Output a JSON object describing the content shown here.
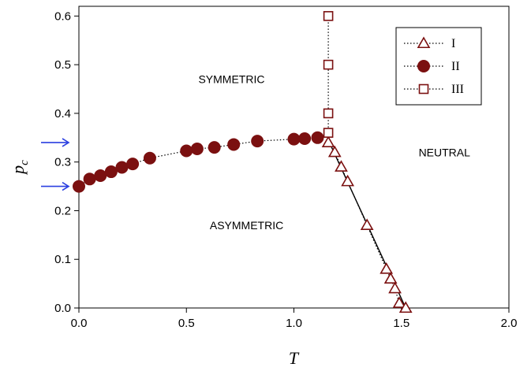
{
  "chart_data": {
    "type": "scatter",
    "title": "",
    "xlabel": "T",
    "ylabel_main": "p",
    "ylabel_sub": "c",
    "xlim": [
      0,
      2.0
    ],
    "ylim": [
      0,
      0.62
    ],
    "x_ticks": [
      "0.0",
      "0.5",
      "1.0",
      "1.5",
      "2.0"
    ],
    "y_ticks": [
      "0.0",
      "0.1",
      "0.2",
      "0.3",
      "0.4",
      "0.5",
      "0.6"
    ],
    "x_tick_values": [
      0,
      0.5,
      1.0,
      1.5,
      2.0
    ],
    "y_tick_values": [
      0,
      0.1,
      0.2,
      0.3,
      0.4,
      0.5,
      0.6
    ],
    "grid": false,
    "legend_position": "top-right",
    "colors": {
      "marker": "#7b1010",
      "line": "#000000",
      "arrow": "#2a3fe0"
    },
    "series": [
      {
        "name": "I",
        "marker": "open-triangle",
        "points": [
          {
            "x": 1.16,
            "y": 0.34
          },
          {
            "x": 1.19,
            "y": 0.32
          },
          {
            "x": 1.22,
            "y": 0.29
          },
          {
            "x": 1.25,
            "y": 0.26
          },
          {
            "x": 1.34,
            "y": 0.17
          },
          {
            "x": 1.43,
            "y": 0.08
          },
          {
            "x": 1.45,
            "y": 0.06
          },
          {
            "x": 1.47,
            "y": 0.04
          },
          {
            "x": 1.49,
            "y": 0.01
          },
          {
            "x": 1.52,
            "y": 0.0
          }
        ]
      },
      {
        "name": "II",
        "marker": "filled-circle",
        "points": [
          {
            "x": 0.0,
            "y": 0.25
          },
          {
            "x": 0.05,
            "y": 0.265
          },
          {
            "x": 0.1,
            "y": 0.272
          },
          {
            "x": 0.15,
            "y": 0.28
          },
          {
            "x": 0.2,
            "y": 0.289
          },
          {
            "x": 0.25,
            "y": 0.296
          },
          {
            "x": 0.33,
            "y": 0.308
          },
          {
            "x": 0.5,
            "y": 0.323
          },
          {
            "x": 0.55,
            "y": 0.327
          },
          {
            "x": 0.63,
            "y": 0.33
          },
          {
            "x": 0.72,
            "y": 0.336
          },
          {
            "x": 0.83,
            "y": 0.343
          },
          {
            "x": 1.0,
            "y": 0.347
          },
          {
            "x": 1.05,
            "y": 0.348
          },
          {
            "x": 1.11,
            "y": 0.35
          }
        ]
      },
      {
        "name": "III",
        "marker": "open-square",
        "points": [
          {
            "x": 1.16,
            "y": 0.6
          },
          {
            "x": 1.16,
            "y": 0.5
          },
          {
            "x": 1.16,
            "y": 0.4
          },
          {
            "x": 1.16,
            "y": 0.36
          }
        ]
      }
    ],
    "solid_line": [
      {
        "x": 1.16,
        "y": 0.345
      },
      {
        "x": 1.52,
        "y": 0.0
      }
    ],
    "region_labels": [
      {
        "text": "SYMMETRIC",
        "x": 0.71,
        "y": 0.47
      },
      {
        "text": "NEUTRAL",
        "x": 1.7,
        "y": 0.32
      },
      {
        "text": "ASYMMETRIC",
        "x": 0.78,
        "y": 0.17
      }
    ],
    "arrows_y": [
      0.34,
      0.25
    ]
  }
}
